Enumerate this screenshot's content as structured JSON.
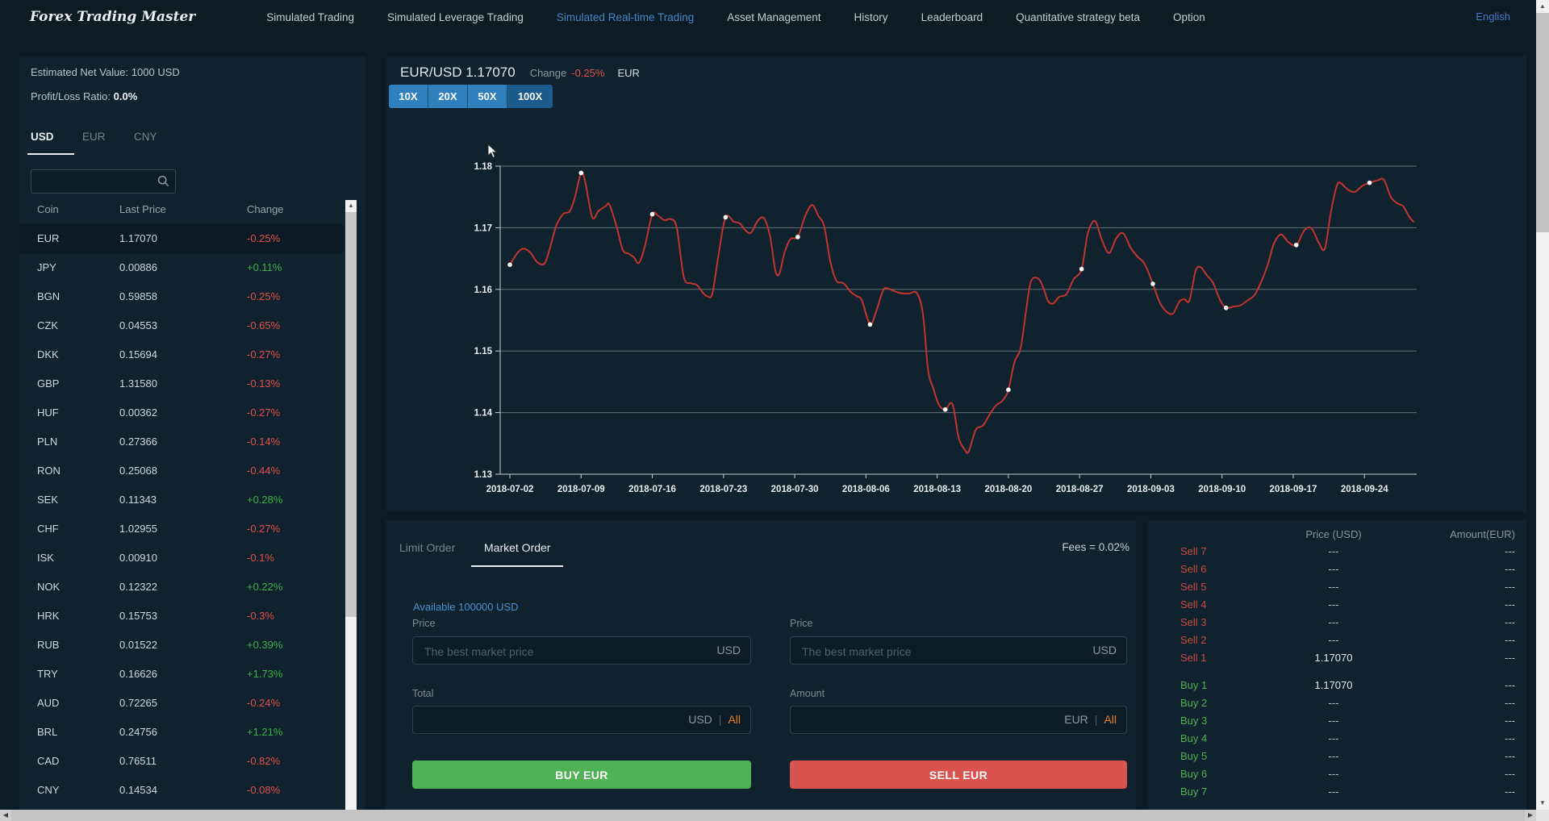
{
  "nav": {
    "logo": "Forex Trading Master",
    "items": [
      {
        "label": "Simulated Trading",
        "active": false
      },
      {
        "label": "Simulated Leverage Trading",
        "active": false
      },
      {
        "label": "Simulated Real-time Trading",
        "active": true
      },
      {
        "label": "Asset Management",
        "active": false
      },
      {
        "label": "History",
        "active": false
      },
      {
        "label": "Leaderboard",
        "active": false
      },
      {
        "label": "Quantitative strategy beta",
        "active": false
      },
      {
        "label": "Option",
        "active": false
      }
    ],
    "language": "English"
  },
  "sidebar": {
    "net_value_label": "Estimated Net Value:",
    "net_value": "1000 USD",
    "pl_label": "Profit/Loss Ratio:",
    "pl_value": "0.0%",
    "tabs": [
      "USD",
      "EUR",
      "CNY"
    ],
    "active_tab": "USD",
    "table": {
      "headers": [
        "Coin",
        "Last Price",
        "Change"
      ],
      "rows": [
        {
          "coin": "EUR",
          "price": "1.17070",
          "change": "-0.25%",
          "dir": "down",
          "selected": true
        },
        {
          "coin": "JPY",
          "price": "0.00886",
          "change": "+0.11%",
          "dir": "up",
          "selected": false
        },
        {
          "coin": "BGN",
          "price": "0.59858",
          "change": "-0.25%",
          "dir": "down",
          "selected": false
        },
        {
          "coin": "CZK",
          "price": "0.04553",
          "change": "-0.65%",
          "dir": "down",
          "selected": false
        },
        {
          "coin": "DKK",
          "price": "0.15694",
          "change": "-0.27%",
          "dir": "down",
          "selected": false
        },
        {
          "coin": "GBP",
          "price": "1.31580",
          "change": "-0.13%",
          "dir": "down",
          "selected": false
        },
        {
          "coin": "HUF",
          "price": "0.00362",
          "change": "-0.27%",
          "dir": "down",
          "selected": false
        },
        {
          "coin": "PLN",
          "price": "0.27366",
          "change": "-0.14%",
          "dir": "down",
          "selected": false
        },
        {
          "coin": "RON",
          "price": "0.25068",
          "change": "-0.44%",
          "dir": "down",
          "selected": false
        },
        {
          "coin": "SEK",
          "price": "0.11343",
          "change": "+0.28%",
          "dir": "up",
          "selected": false
        },
        {
          "coin": "CHF",
          "price": "1.02955",
          "change": "-0.27%",
          "dir": "down",
          "selected": false
        },
        {
          "coin": "ISK",
          "price": "0.00910",
          "change": "-0.1%",
          "dir": "down",
          "selected": false
        },
        {
          "coin": "NOK",
          "price": "0.12322",
          "change": "+0.22%",
          "dir": "up",
          "selected": false
        },
        {
          "coin": "HRK",
          "price": "0.15753",
          "change": "-0.3%",
          "dir": "down",
          "selected": false
        },
        {
          "coin": "RUB",
          "price": "0.01522",
          "change": "+0.39%",
          "dir": "up",
          "selected": false
        },
        {
          "coin": "TRY",
          "price": "0.16626",
          "change": "+1.73%",
          "dir": "up",
          "selected": false
        },
        {
          "coin": "AUD",
          "price": "0.72265",
          "change": "-0.24%",
          "dir": "down",
          "selected": false
        },
        {
          "coin": "BRL",
          "price": "0.24756",
          "change": "+1.21%",
          "dir": "up",
          "selected": false
        },
        {
          "coin": "CAD",
          "price": "0.76511",
          "change": "-0.82%",
          "dir": "down",
          "selected": false
        },
        {
          "coin": "CNY",
          "price": "0.14534",
          "change": "-0.08%",
          "dir": "down",
          "selected": false
        }
      ]
    }
  },
  "market": {
    "pair_price": "EUR/USD 1.17070",
    "change_label": "Change",
    "change_value": "-0.25%",
    "unit": "EUR",
    "leverage": [
      {
        "label": "10X",
        "active": false
      },
      {
        "label": "20X",
        "active": false
      },
      {
        "label": "50X",
        "active": false
      },
      {
        "label": "100X",
        "active": true
      }
    ]
  },
  "chart_data": {
    "type": "line",
    "title": "EUR/USD price history",
    "ylim": [
      1.13,
      1.18
    ],
    "y_ticks": [
      1.13,
      1.14,
      1.15,
      1.16,
      1.17,
      1.18
    ],
    "x_tick_labels": [
      "2018-07-02",
      "2018-07-09",
      "2018-07-16",
      "2018-07-23",
      "2018-07-30",
      "2018-08-06",
      "2018-08-13",
      "2018-08-20",
      "2018-08-27",
      "2018-09-03",
      "2018-09-10",
      "2018-09-17",
      "2018-09-24"
    ],
    "line_color": "#c23531",
    "marker_color": "#ffffff",
    "grid": true,
    "series": [
      {
        "name": "EUR/USD",
        "points": [
          [
            0,
            1.164
          ],
          [
            0.7,
            1.1658
          ],
          [
            1.3,
            1.1666
          ],
          [
            2,
            1.166
          ],
          [
            2.7,
            1.1644
          ],
          [
            3.4,
            1.1642
          ],
          [
            3.9,
            1.1665
          ],
          [
            4.4,
            1.1695
          ],
          [
            4.7,
            1.1709
          ],
          [
            5.3,
            1.1723
          ],
          [
            5.9,
            1.1727
          ],
          [
            6.4,
            1.175
          ],
          [
            7,
            1.1789
          ],
          [
            7.4,
            1.1775
          ],
          [
            8.1,
            1.1717
          ],
          [
            8.7,
            1.1727
          ],
          [
            9.4,
            1.1735
          ],
          [
            9.8,
            1.1737
          ],
          [
            10.5,
            1.1701
          ],
          [
            11.1,
            1.1664
          ],
          [
            11.7,
            1.1658
          ],
          [
            12.2,
            1.1652
          ],
          [
            12.7,
            1.1643
          ],
          [
            13.3,
            1.1672
          ],
          [
            14,
            1.1722
          ],
          [
            14.6,
            1.1719
          ],
          [
            15.2,
            1.1712
          ],
          [
            15.8,
            1.1714
          ],
          [
            16.4,
            1.17
          ],
          [
            17.1,
            1.162
          ],
          [
            17.8,
            1.161
          ],
          [
            18.4,
            1.1607
          ],
          [
            19,
            1.1594
          ],
          [
            19.4,
            1.1589
          ],
          [
            19.9,
            1.1593
          ],
          [
            20.5,
            1.1655
          ],
          [
            21.2,
            1.1717
          ],
          [
            22,
            1.171
          ],
          [
            22.6,
            1.1707
          ],
          [
            23.2,
            1.1695
          ],
          [
            23.7,
            1.1692
          ],
          [
            24.4,
            1.1712
          ],
          [
            25,
            1.1715
          ],
          [
            25.6,
            1.1684
          ],
          [
            26.1,
            1.163
          ],
          [
            26.5,
            1.1626
          ],
          [
            27,
            1.166
          ],
          [
            27.6,
            1.1682
          ],
          [
            28.3,
            1.1685
          ],
          [
            29,
            1.1718
          ],
          [
            29.7,
            1.1737
          ],
          [
            30.3,
            1.172
          ],
          [
            30.9,
            1.1702
          ],
          [
            31.5,
            1.1645
          ],
          [
            32.1,
            1.1614
          ],
          [
            32.8,
            1.161
          ],
          [
            33.5,
            1.1596
          ],
          [
            34.1,
            1.1589
          ],
          [
            34.6,
            1.1582
          ],
          [
            35.4,
            1.1543
          ],
          [
            36,
            1.1564
          ],
          [
            36.7,
            1.1599
          ],
          [
            37.2,
            1.1601
          ],
          [
            37.8,
            1.1597
          ],
          [
            38.4,
            1.1594
          ],
          [
            39.2,
            1.1593
          ],
          [
            40,
            1.1594
          ],
          [
            40.6,
            1.156
          ],
          [
            41.1,
            1.147
          ],
          [
            41.6,
            1.144
          ],
          [
            42.2,
            1.1412
          ],
          [
            42.8,
            1.1405
          ],
          [
            43.5,
            1.1414
          ],
          [
            44.1,
            1.136
          ],
          [
            44.7,
            1.134
          ],
          [
            45.1,
            1.1337
          ],
          [
            45.8,
            1.1372
          ],
          [
            46.5,
            1.1379
          ],
          [
            47.2,
            1.1398
          ],
          [
            47.8,
            1.1412
          ],
          [
            48.4,
            1.1419
          ],
          [
            49,
            1.1437
          ],
          [
            49.6,
            1.1482
          ],
          [
            50.2,
            1.1504
          ],
          [
            50.7,
            1.156
          ],
          [
            51.2,
            1.1612
          ],
          [
            51.9,
            1.1618
          ],
          [
            52.4,
            1.1604
          ],
          [
            52.9,
            1.1581
          ],
          [
            53.4,
            1.1577
          ],
          [
            54,
            1.1588
          ],
          [
            54.7,
            1.1592
          ],
          [
            55.4,
            1.1616
          ],
          [
            56.2,
            1.1633
          ],
          [
            56.8,
            1.169
          ],
          [
            57.5,
            1.1711
          ],
          [
            58.2,
            1.168
          ],
          [
            58.9,
            1.1659
          ],
          [
            59.6,
            1.1683
          ],
          [
            60.3,
            1.1691
          ],
          [
            61,
            1.1668
          ],
          [
            61.7,
            1.1653
          ],
          [
            62.4,
            1.1641
          ],
          [
            63.2,
            1.1609
          ],
          [
            63.9,
            1.1578
          ],
          [
            64.6,
            1.1563
          ],
          [
            65.2,
            1.1561
          ],
          [
            65.8,
            1.158
          ],
          [
            66.3,
            1.1584
          ],
          [
            66.8,
            1.1582
          ],
          [
            67.4,
            1.163
          ],
          [
            67.9,
            1.1636
          ],
          [
            68.5,
            1.1623
          ],
          [
            69.1,
            1.1611
          ],
          [
            69.8,
            1.1583
          ],
          [
            70.4,
            1.157
          ],
          [
            71.1,
            1.1572
          ],
          [
            71.8,
            1.1574
          ],
          [
            72.5,
            1.1582
          ],
          [
            73.2,
            1.1591
          ],
          [
            73.9,
            1.1614
          ],
          [
            74.5,
            1.164
          ],
          [
            75.1,
            1.1674
          ],
          [
            75.8,
            1.1689
          ],
          [
            76.5,
            1.1677
          ],
          [
            77.3,
            1.1672
          ],
          [
            78.1,
            1.1696
          ],
          [
            78.8,
            1.1699
          ],
          [
            79.5,
            1.1676
          ],
          [
            80.1,
            1.1666
          ],
          [
            80.7,
            1.1725
          ],
          [
            81.3,
            1.1769
          ],
          [
            81.7,
            1.1772
          ],
          [
            82.3,
            1.1763
          ],
          [
            83,
            1.1758
          ],
          [
            83.8,
            1.1768
          ],
          [
            84.5,
            1.1773
          ],
          [
            85.3,
            1.1777
          ],
          [
            85.9,
            1.1778
          ],
          [
            86.6,
            1.175
          ],
          [
            87.2,
            1.174
          ],
          [
            87.8,
            1.1735
          ],
          [
            88.4,
            1.1718
          ],
          [
            88.8,
            1.171
          ]
        ]
      }
    ],
    "markers": [
      [
        0,
        1.164
      ],
      [
        7,
        1.1789
      ],
      [
        14,
        1.1722
      ],
      [
        21.2,
        1.1717
      ],
      [
        28.3,
        1.1685
      ],
      [
        35.4,
        1.1543
      ],
      [
        42.8,
        1.1405
      ],
      [
        49,
        1.1437
      ],
      [
        56.2,
        1.1633
      ],
      [
        63.2,
        1.1609
      ],
      [
        70.4,
        1.157
      ],
      [
        77.3,
        1.1672
      ],
      [
        84.5,
        1.1773
      ]
    ]
  },
  "order_form": {
    "tab_limit": "Limit Order",
    "tab_market": "Market Order",
    "fees": "Fees = 0.02%",
    "available": "Available 100000 USD",
    "price_label": "Price",
    "total_label": "Total",
    "amount_label": "Amount",
    "placeholder": "The best market price",
    "unit_usd": "USD",
    "unit_eur": "EUR",
    "sep": "|",
    "all": "All",
    "buy_button": "BUY EUR",
    "sell_button": "SELL EUR"
  },
  "order_book": {
    "price_header": "Price (USD)",
    "amount_header": "Amount(EUR)",
    "sells": [
      {
        "label": "Sell 7",
        "price": "---",
        "amount": "---"
      },
      {
        "label": "Sell 6",
        "price": "---",
        "amount": "---"
      },
      {
        "label": "Sell 5",
        "price": "---",
        "amount": "---"
      },
      {
        "label": "Sell 4",
        "price": "---",
        "amount": "---"
      },
      {
        "label": "Sell 3",
        "price": "---",
        "amount": "---"
      },
      {
        "label": "Sell 2",
        "price": "---",
        "amount": "---"
      },
      {
        "label": "Sell 1",
        "price": "1.17070",
        "amount": "---"
      }
    ],
    "buys": [
      {
        "label": "Buy 1",
        "price": "1.17070",
        "amount": "---"
      },
      {
        "label": "Buy 2",
        "price": "---",
        "amount": "---"
      },
      {
        "label": "Buy 3",
        "price": "---",
        "amount": "---"
      },
      {
        "label": "Buy 4",
        "price": "---",
        "amount": "---"
      },
      {
        "label": "Buy 5",
        "price": "---",
        "amount": "---"
      },
      {
        "label": "Buy 6",
        "price": "---",
        "amount": "---"
      },
      {
        "label": "Buy 7",
        "price": "---",
        "amount": "---"
      }
    ]
  },
  "icons": {
    "scroll_up": "▲",
    "scroll_down": "▼",
    "scroll_left": "◀",
    "scroll_right": "▶"
  },
  "colors": {
    "accent_blue": "#3080bd",
    "accent_blue_selected": "#1d5b8c",
    "link_blue": "#4a90d2",
    "buy_green": "#4fb254",
    "sell_red": "#d9534f",
    "up_green": "#3eb049",
    "down_red": "#e0514e",
    "line_red": "#c23531",
    "panel": "#10222d",
    "page": "#0d1b24",
    "all_orange": "#e87d26"
  }
}
